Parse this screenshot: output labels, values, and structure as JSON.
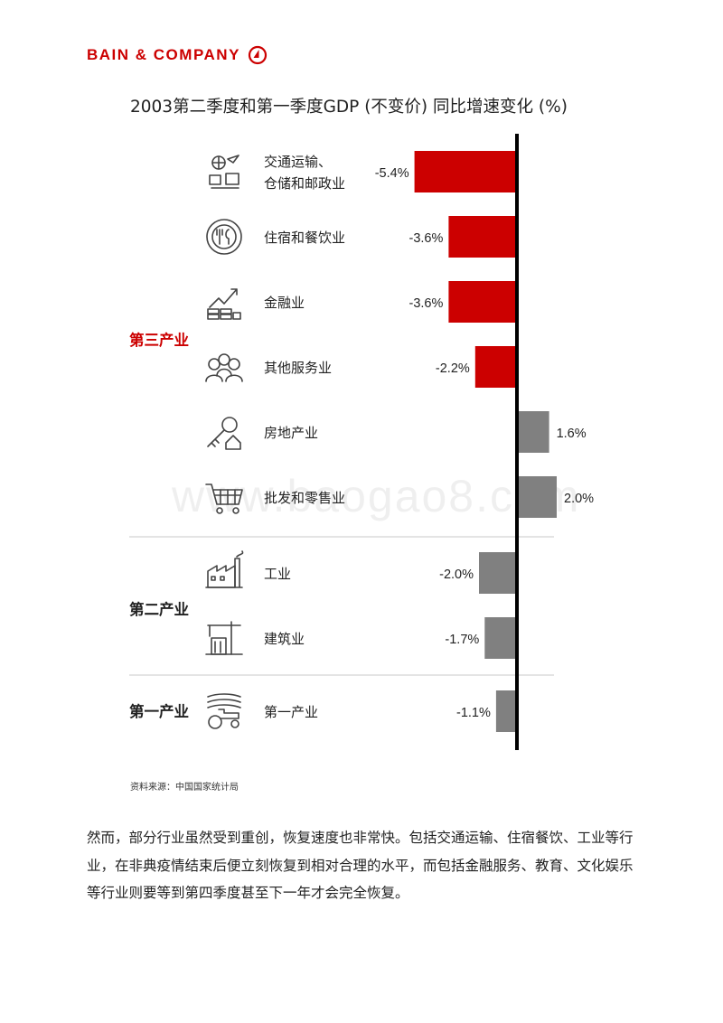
{
  "header": {
    "logo_text": "BAIN & COMPANY"
  },
  "watermark": "www.baogao8.com",
  "chart_data": {
    "type": "bar",
    "orientation": "horizontal",
    "title": "2003第二季度和第一季度GDP (不变价) 同比增速变化 (%)",
    "unit": "%",
    "colors": {
      "negative_tertiary": "#cc0000",
      "other": "#808080"
    },
    "groups": [
      {
        "name": "第三产业",
        "name_color": "#cc0000",
        "categories": [
          {
            "label": "交通运输、\n仓储和邮政业",
            "value": -5.4,
            "value_label": "-5.4%",
            "icon": "logistics-icon"
          },
          {
            "label": "住宿和餐饮业",
            "value": -3.6,
            "value_label": "-3.6%",
            "icon": "dining-icon"
          },
          {
            "label": "金融业",
            "value": -3.6,
            "value_label": "-3.6%",
            "icon": "finance-icon"
          },
          {
            "label": "其他服务业",
            "value": -2.2,
            "value_label": "-2.2%",
            "icon": "people-icon"
          },
          {
            "label": "房地产业",
            "value": 1.6,
            "value_label": "1.6%",
            "icon": "house-key-icon"
          },
          {
            "label": "批发和零售业",
            "value": 2.0,
            "value_label": "2.0%",
            "icon": "cart-icon"
          }
        ]
      },
      {
        "name": "第二产业",
        "name_color": "#222222",
        "categories": [
          {
            "label": "工业",
            "value": -2.0,
            "value_label": "-2.0%",
            "icon": "factory-icon"
          },
          {
            "label": "建筑业",
            "value": -1.7,
            "value_label": "-1.7%",
            "icon": "crane-icon"
          }
        ]
      },
      {
        "name": "第一产业",
        "name_color": "#222222",
        "categories": [
          {
            "label": "第一产业",
            "value": -1.1,
            "value_label": "-1.1%",
            "icon": "tractor-icon"
          }
        ]
      }
    ]
  },
  "source": "资料来源：中国国家统计局",
  "paragraph": "然而，部分行业虽然受到重创，恢复速度也非常快。包括交通运输、住宿餐饮、工业等行业，在非典疫情结束后便立刻恢复到相对合理的水平，而包括金融服务、教育、文化娱乐等行业则要等到第四季度甚至下一年才会完全恢复。"
}
